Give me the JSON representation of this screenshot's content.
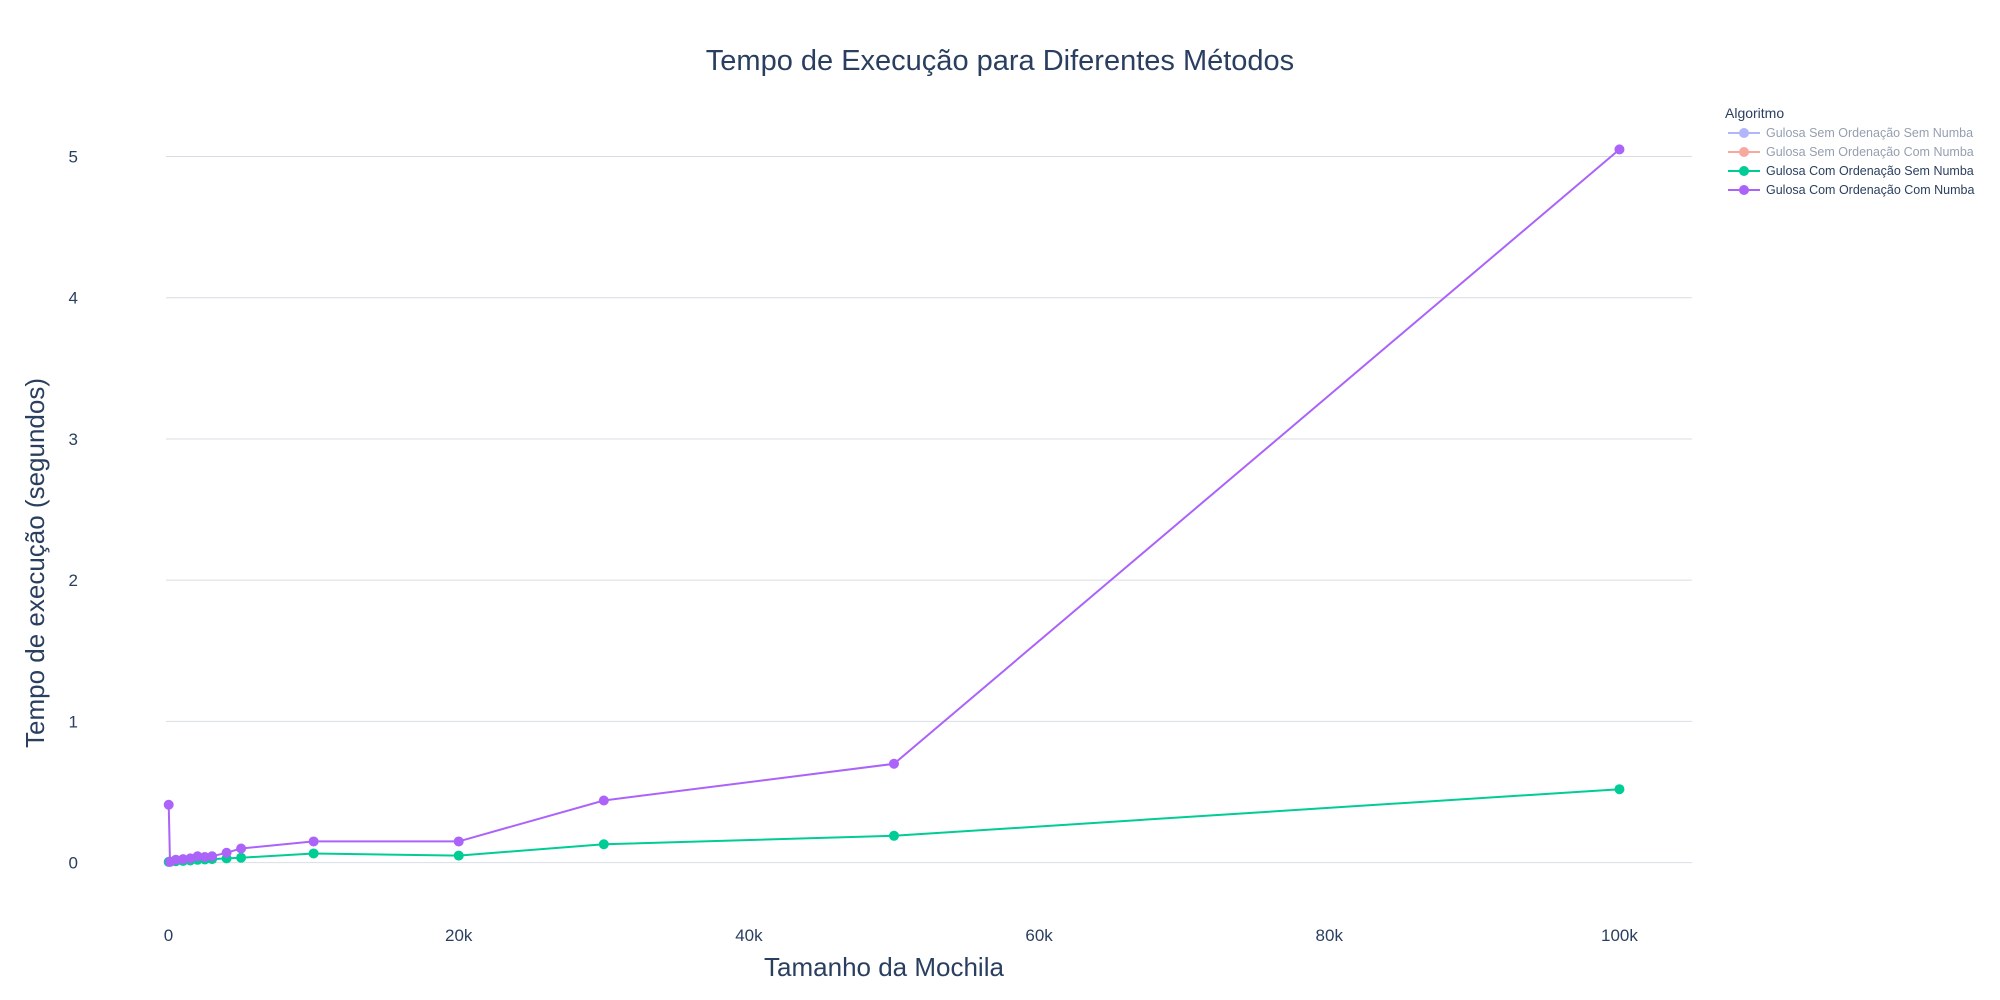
{
  "chart_data": {
    "type": "line",
    "title": "Tempo de Execução para Diferentes Métodos",
    "xlabel": "Tamanho da Mochila",
    "ylabel": "Tempo de execução (segundos)",
    "xlim": [
      -5000,
      105000
    ],
    "ylim": [
      -0.3,
      5.4
    ],
    "x_ticks": [
      0,
      20000,
      40000,
      60000,
      80000,
      100000
    ],
    "x_tick_labels": [
      "0",
      "20k",
      "40k",
      "60k",
      "80k",
      "100k"
    ],
    "y_ticks": [
      0,
      1,
      2,
      3,
      4,
      5
    ],
    "y_tick_labels": [
      "0",
      "1",
      "2",
      "3",
      "4",
      "5"
    ],
    "grid": "horizontal",
    "legend": {
      "title": "Algoritmo",
      "placement": "top-right-outside"
    },
    "series": [
      {
        "name": "Gulosa Sem Ordenação Sem Numba",
        "color": "#636efa",
        "visible": false,
        "x": [],
        "y": []
      },
      {
        "name": "Gulosa Sem Ordenação Com Numba",
        "color": "#ef553b",
        "visible": false,
        "x": [],
        "y": []
      },
      {
        "name": "Gulosa Com Ordenação Sem Numba",
        "color": "#00cc96",
        "visible": true,
        "x": [
          10,
          100,
          500,
          1000,
          1500,
          2000,
          2500,
          3000,
          4000,
          5000,
          10000,
          20000,
          30000,
          50000,
          100000
        ],
        "y": [
          0.005,
          0.008,
          0.01,
          0.012,
          0.015,
          0.02,
          0.022,
          0.025,
          0.03,
          0.035,
          0.065,
          0.05,
          0.13,
          0.19,
          0.52
        ]
      },
      {
        "name": "Gulosa Com Ordenação Com Numba",
        "color": "#ab63fa",
        "visible": true,
        "x": [
          10,
          100,
          500,
          1000,
          1500,
          2000,
          2500,
          3000,
          4000,
          5000,
          10000,
          20000,
          30000,
          50000,
          100000
        ],
        "y": [
          0.41,
          0.005,
          0.02,
          0.025,
          0.03,
          0.045,
          0.04,
          0.045,
          0.07,
          0.1,
          0.15,
          0.15,
          0.44,
          0.7,
          5.05
        ]
      }
    ]
  }
}
